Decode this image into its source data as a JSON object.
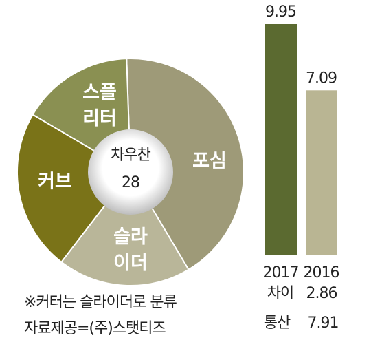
{
  "chart_data": [
    {
      "type": "pie",
      "categories": [
        "포심",
        "슬라이더",
        "커브",
        "스플리터"
      ],
      "values": [
        42,
        19,
        23,
        16
      ],
      "colors": [
        "#9e9a78",
        "#b9b699",
        "#7a7318",
        "#8a9052"
      ],
      "donut": true,
      "center_label": "차우찬",
      "center_value": 28
    },
    {
      "type": "bar",
      "categories": [
        "2017",
        "2016"
      ],
      "values": [
        9.95,
        7.09
      ],
      "colors": [
        "#5b6a30",
        "#b9b593"
      ],
      "diff_label": "차이",
      "diff": 2.86,
      "career_label": "통산",
      "career": 7.91
    }
  ],
  "notes": [
    "※커터는 슬라이더로 분류",
    "자료제공=(주)스탯티즈"
  ]
}
